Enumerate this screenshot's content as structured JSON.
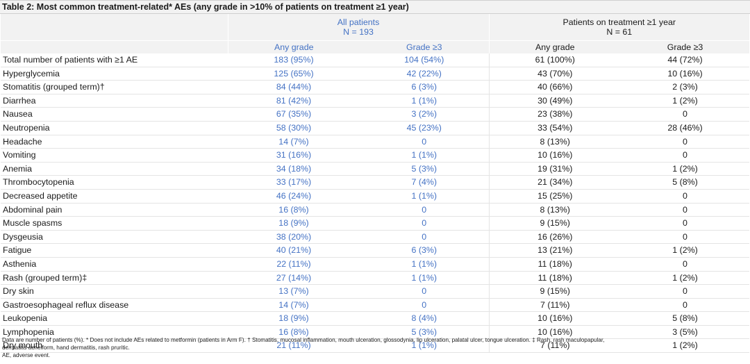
{
  "title": "Table 2: Most common treatment-related* AEs (any grade in >10% of patients on treatment ≥1 year)",
  "groups": {
    "all": {
      "line1": "All patients",
      "line2": "N = 193"
    },
    "long": {
      "line1": "Patients on treatment ≥1 year",
      "line2": "N = 61"
    }
  },
  "columns": {
    "all_any": "Any grade",
    "all_g3": "Grade ≥3",
    "long_any": "Any grade",
    "long_g3": "Grade ≥3"
  },
  "colors": {
    "blue": "#4472c4",
    "header_bg": "#f2f2f2"
  },
  "rows": [
    {
      "label": "Total number of patients with ≥1 AE",
      "all_any": "183 (95%)",
      "all_g3": "104 (54%)",
      "long_any": "61 (100%)",
      "long_g3": "44 (72%)"
    },
    {
      "label": "Hyperglycemia",
      "all_any": "125 (65%)",
      "all_g3": "42 (22%)",
      "long_any": "43 (70%)",
      "long_g3": "10 (16%)"
    },
    {
      "label": "Stomatitis (grouped term)†",
      "all_any": "84 (44%)",
      "all_g3": "6 (3%)",
      "long_any": "40 (66%)",
      "long_g3": "2 (3%)"
    },
    {
      "label": "Diarrhea",
      "all_any": "81 (42%)",
      "all_g3": "1 (1%)",
      "long_any": "30 (49%)",
      "long_g3": "1 (2%)"
    },
    {
      "label": "Nausea",
      "all_any": "67 (35%)",
      "all_g3": "3 (2%)",
      "long_any": "23 (38%)",
      "long_g3": "0"
    },
    {
      "label": "Neutropenia",
      "all_any": "58 (30%)",
      "all_g3": "45 (23%)",
      "long_any": "33 (54%)",
      "long_g3": "28 (46%)"
    },
    {
      "label": "Headache",
      "all_any": "14 (7%)",
      "all_g3": "0",
      "long_any": "8 (13%)",
      "long_g3": "0"
    },
    {
      "label": "Vomiting",
      "all_any": "31 (16%)",
      "all_g3": "1 (1%)",
      "long_any": "10 (16%)",
      "long_g3": "0"
    },
    {
      "label": "Anemia",
      "all_any": "34 (18%)",
      "all_g3": "5 (3%)",
      "long_any": "19 (31%)",
      "long_g3": "1 (2%)"
    },
    {
      "label": "Thrombocytopenia",
      "all_any": "33 (17%)",
      "all_g3": "7 (4%)",
      "long_any": "21 (34%)",
      "long_g3": "5 (8%)"
    },
    {
      "label": "Decreased appetite",
      "all_any": "46 (24%)",
      "all_g3": "1 (1%)",
      "long_any": "15 (25%)",
      "long_g3": "0"
    },
    {
      "label": "Abdominal pain",
      "all_any": "16 (8%)",
      "all_g3": "0",
      "long_any": "8 (13%)",
      "long_g3": "0"
    },
    {
      "label": "Muscle spasms",
      "all_any": "18 (9%)",
      "all_g3": "0",
      "long_any": "9 (15%)",
      "long_g3": "0"
    },
    {
      "label": "Dysgeusia",
      "all_any": "38 (20%)",
      "all_g3": "0",
      "long_any": "16 (26%)",
      "long_g3": "0"
    },
    {
      "label": "Fatigue",
      "all_any": "40 (21%)",
      "all_g3": "6 (3%)",
      "long_any": "13 (21%)",
      "long_g3": "1 (2%)"
    },
    {
      "label": "Asthenia",
      "all_any": "22 (11%)",
      "all_g3": "1 (1%)",
      "long_any": "11 (18%)",
      "long_g3": "0"
    },
    {
      "label": "Rash (grouped term)‡",
      "all_any": "27 (14%)",
      "all_g3": "1 (1%)",
      "long_any": "11 (18%)",
      "long_g3": "1 (2%)"
    },
    {
      "label": "Dry skin",
      "all_any": "13 (7%)",
      "all_g3": "0",
      "long_any": "9 (15%)",
      "long_g3": "0"
    },
    {
      "label": "Gastroesophageal reflux disease",
      "all_any": "14 (7%)",
      "all_g3": "0",
      "long_any": "7 (11%)",
      "long_g3": "0"
    },
    {
      "label": "Leukopenia",
      "all_any": "18 (9%)",
      "all_g3": "8 (4%)",
      "long_any": "10 (16%)",
      "long_g3": "5 (8%)"
    },
    {
      "label": "Lymphopenia",
      "all_any": "16 (8%)",
      "all_g3": "5 (3%)",
      "long_any": "10 (16%)",
      "long_g3": "3 (5%)"
    },
    {
      "label": "Dry mouth",
      "all_any": "21 (11%)",
      "all_g3": "1 (1%)",
      "long_any": "7 (11%)",
      "long_g3": "1 (2%)"
    }
  ],
  "footnotes": {
    "line1": "Data are number of patients (%). * Does not include AEs related to metformin (patients in Arm F). † Stomatitis, mucosal inflammation, mouth ulceration, glossodynia, lip ulceration, palatal ulcer, tongue ulceration. ‡ Rash, rash maculopapular,",
    "line2": "dermatitis acneiform, hand dermatitis, rash pruritic.",
    "line3": "AE, adverse event."
  }
}
